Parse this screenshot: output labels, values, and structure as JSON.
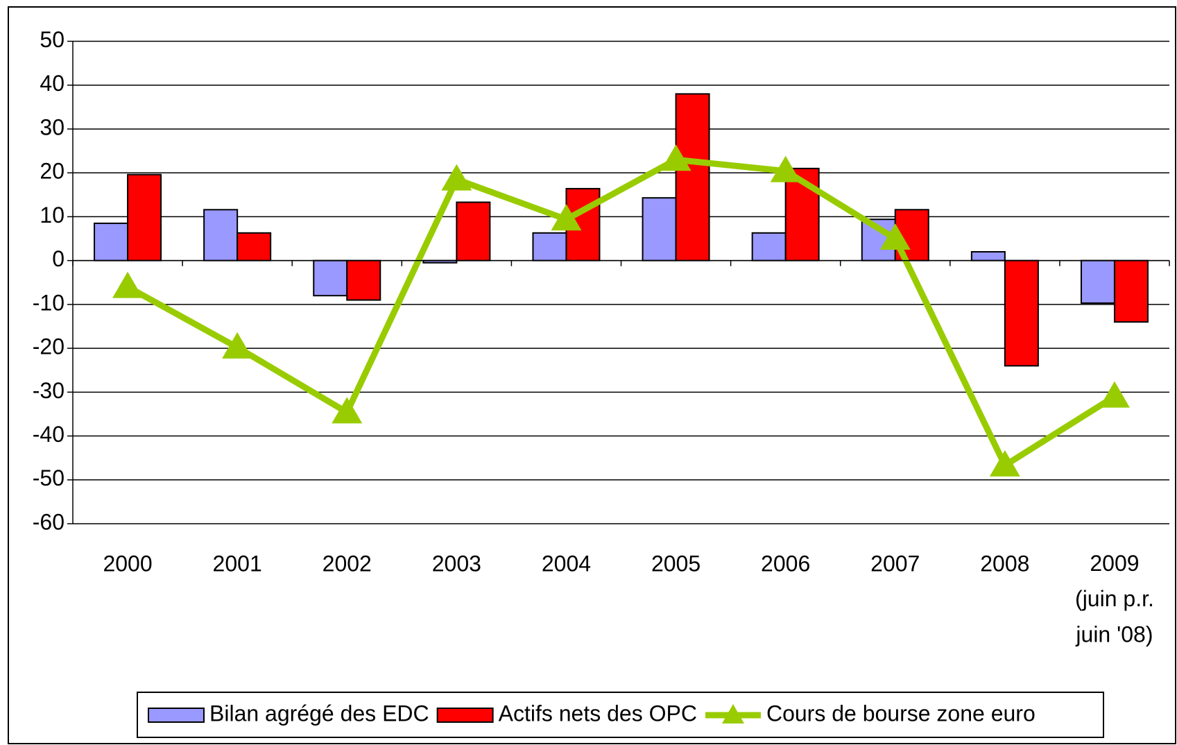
{
  "chart_data": {
    "type": "bar",
    "categories": [
      "2000",
      "2001",
      "2002",
      "2003",
      "2004",
      "2005",
      "2006",
      "2007",
      "2008",
      "2009\n(juin p.r.\njuin '08)"
    ],
    "series": [
      {
        "name": "Bilan agrégé des EDC",
        "type": "bar",
        "color": "#9999ff",
        "values": [
          8.5,
          11.6,
          -8,
          -0.5,
          6.3,
          14.3,
          6.3,
          9.4,
          2,
          -9.7
        ]
      },
      {
        "name": "Actifs nets des OPC",
        "type": "bar",
        "color": "#ff0000",
        "values": [
          19.6,
          6.3,
          -9,
          13.3,
          16.4,
          38,
          21,
          11.6,
          -24,
          -14
        ]
      },
      {
        "name": "Cours de bourse zone euro",
        "type": "line",
        "color": "#99cc00",
        "values": [
          -6,
          -19.8,
          -34.6,
          18.5,
          9.4,
          23,
          20.4,
          5,
          -46.7,
          -31
        ]
      }
    ],
    "ylim": [
      -60,
      50
    ],
    "yticks": [
      -60,
      -50,
      -40,
      -30,
      -20,
      -10,
      0,
      10,
      20,
      30,
      40,
      50
    ],
    "grid": true,
    "legend": "bottom"
  }
}
